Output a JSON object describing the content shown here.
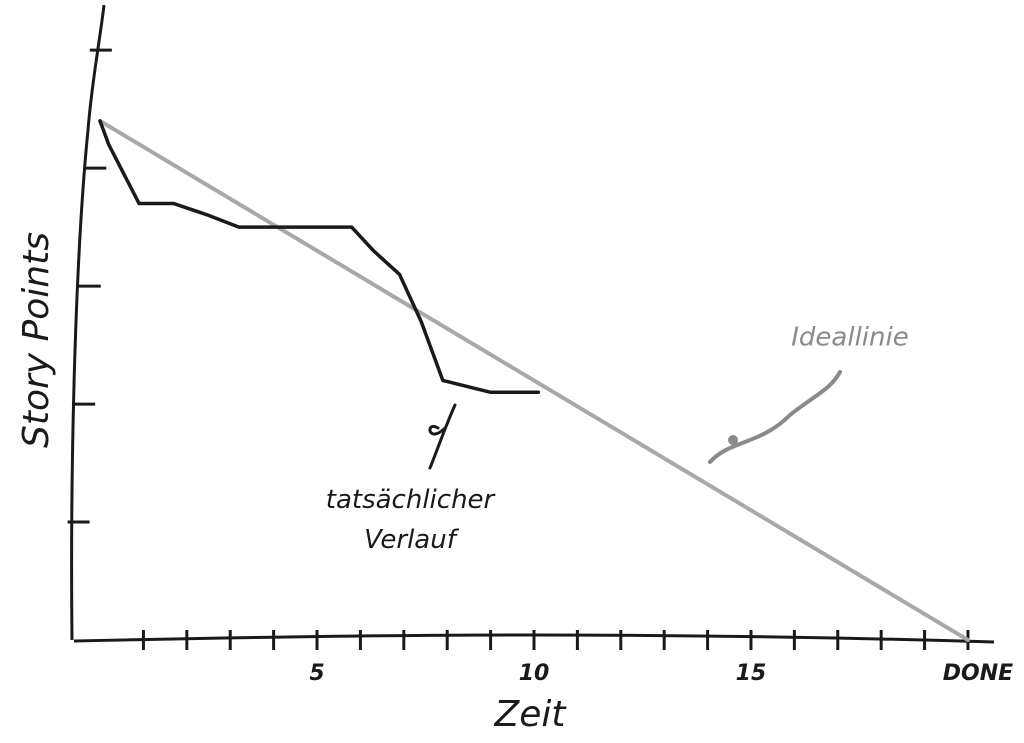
{
  "chart_data": {
    "type": "line",
    "x_label": "Zeit",
    "y_label": "Story Points",
    "xlim": [
      -0.6,
      20.6
    ],
    "ylim": [
      0,
      5.4
    ],
    "xticks": [
      5,
      10,
      15,
      {
        "value": 20,
        "label": "DONE"
      }
    ],
    "minor_xticks": [
      1,
      2,
      3,
      4,
      6,
      7,
      8,
      9,
      11,
      12,
      13,
      14,
      16,
      17,
      18,
      19
    ],
    "yticks": [
      1,
      2,
      3,
      4,
      5
    ],
    "series": [
      {
        "name": "Ideallinie",
        "color": "#a8a8a8",
        "x": [
          0,
          20
        ],
        "values": [
          4.4,
          0
        ]
      },
      {
        "name": "tatsächlicher Verlauf",
        "color": "#1a1a1a",
        "x": [
          0,
          0.2,
          0.9,
          1.7,
          2.5,
          3.2,
          4.4,
          5.8,
          6.3,
          6.9,
          7.4,
          7.9,
          9.0,
          10.1
        ],
        "values": [
          4.4,
          4.2,
          3.7,
          3.7,
          3.6,
          3.5,
          3.5,
          3.5,
          3.3,
          3.1,
          2.7,
          2.2,
          2.1,
          2.1
        ]
      }
    ]
  }
}
